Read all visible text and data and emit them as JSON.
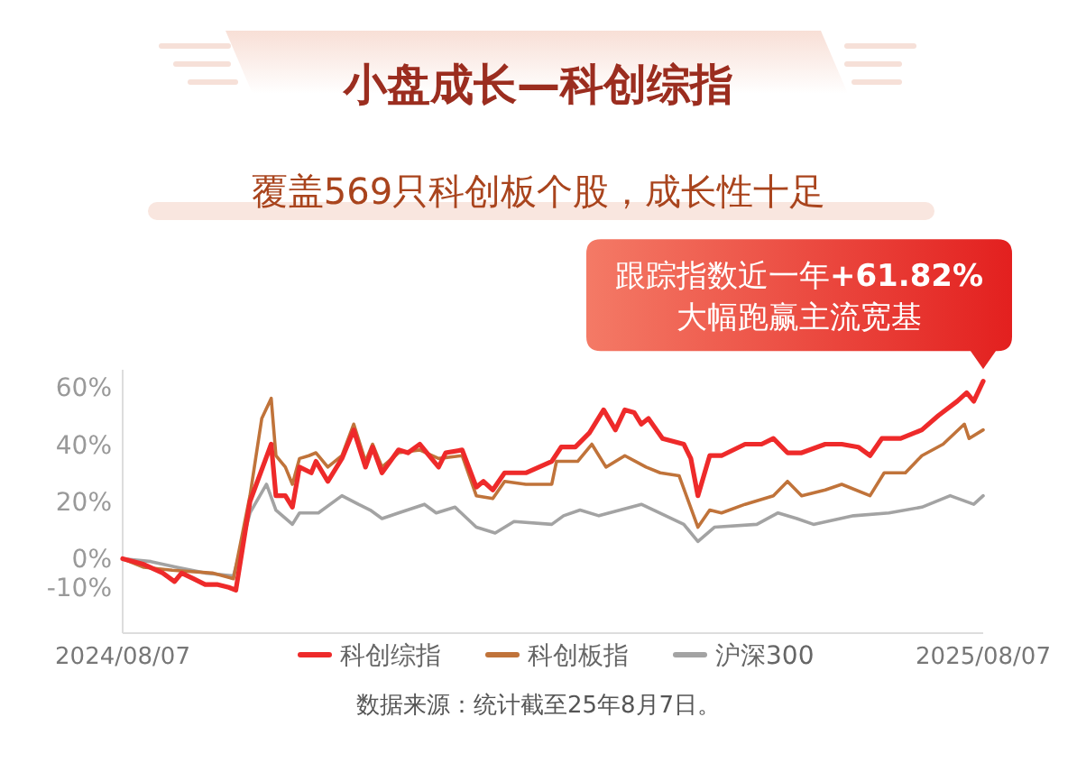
{
  "chart_data": {
    "type": "line",
    "title": "小盘成长—科创综指",
    "subtitle": "覆盖569只科创板个股，成长性十足",
    "xlim": [
      "2024-08-07",
      "2025-08-07"
    ],
    "xticks": [
      {
        "value": "2024-08-07",
        "label": "2024/08/07"
      },
      {
        "value": "2025-08-07",
        "label": "2025/08/07"
      }
    ],
    "ylim": [
      -26,
      66
    ],
    "yticks": [
      {
        "value": 60,
        "label": "60%"
      },
      {
        "value": 40,
        "label": "40%"
      },
      {
        "value": 20,
        "label": "20%"
      },
      {
        "value": 0,
        "label": "0%"
      },
      {
        "value": -10,
        "label": "-10%"
      }
    ],
    "legend": "bottom",
    "series": [
      {
        "name": "科创综指",
        "color": "#ee2a2a",
        "x": [
          "2024-08-07",
          "2024-08-16",
          "2024-08-24",
          "2024-08-29",
          "2024-09-01",
          "2024-09-06",
          "2024-09-11",
          "2024-09-16",
          "2024-09-21",
          "2024-09-24",
          "2024-09-30",
          "2024-10-09",
          "2024-10-11",
          "2024-10-15",
          "2024-10-18",
          "2024-10-21",
          "2024-10-26",
          "2024-10-28",
          "2024-11-02",
          "2024-11-08",
          "2024-11-13",
          "2024-11-18",
          "2024-11-21",
          "2024-11-25",
          "2024-12-02",
          "2024-12-06",
          "2024-12-11",
          "2024-12-19",
          "2024-12-22",
          "2024-12-29",
          "2025-01-04",
          "2025-01-07",
          "2025-01-11",
          "2025-01-16",
          "2025-01-25",
          "2025-02-05",
          "2025-02-09",
          "2025-02-15",
          "2025-02-21",
          "2025-02-27",
          "2025-03-04",
          "2025-03-08",
          "2025-03-12",
          "2025-03-15",
          "2025-03-18",
          "2025-03-24",
          "2025-04-02",
          "2025-04-05",
          "2025-04-08",
          "2025-04-13",
          "2025-04-18",
          "2025-04-28",
          "2025-05-05",
          "2025-05-10",
          "2025-05-16",
          "2025-05-22",
          "2025-06-01",
          "2025-06-08",
          "2025-06-15",
          "2025-06-20",
          "2025-06-25",
          "2025-07-03",
          "2025-07-12",
          "2025-07-19",
          "2025-07-27",
          "2025-07-31",
          "2025-08-03",
          "2025-08-07"
        ],
        "values": [
          0,
          -2,
          -5,
          -8,
          -5,
          -7,
          -9,
          -9,
          -10,
          -11,
          20,
          40,
          22,
          22,
          18,
          32,
          30,
          34,
          27,
          35,
          45,
          32,
          39,
          30,
          38,
          37,
          40,
          32,
          37,
          38,
          25,
          27,
          24,
          30,
          30,
          34,
          39,
          39,
          44,
          52,
          45,
          52,
          51,
          47,
          49,
          42,
          40,
          35,
          22,
          36,
          36,
          40,
          40,
          42,
          37,
          37,
          40,
          40,
          39,
          36,
          42,
          42,
          45,
          50,
          55,
          58,
          55,
          62
        ]
      },
      {
        "name": "科创板指",
        "color": "#c0733a",
        "x": [
          "2024-08-07",
          "2024-08-16",
          "2024-08-28",
          "2024-09-14",
          "2024-09-23",
          "2024-09-30",
          "2024-10-05",
          "2024-10-09",
          "2024-10-11",
          "2024-10-15",
          "2024-10-18",
          "2024-10-21",
          "2024-10-25",
          "2024-10-28",
          "2024-11-02",
          "2024-11-08",
          "2024-11-13",
          "2024-11-18",
          "2024-11-21",
          "2024-11-25",
          "2024-12-02",
          "2024-12-11",
          "2024-12-19",
          "2024-12-29",
          "2025-01-04",
          "2025-01-11",
          "2025-01-16",
          "2025-01-25",
          "2025-02-05",
          "2025-02-07",
          "2025-02-16",
          "2025-02-22",
          "2025-02-28",
          "2025-03-08",
          "2025-03-17",
          "2025-03-23",
          "2025-03-31",
          "2025-04-08",
          "2025-04-13",
          "2025-04-18",
          "2025-04-28",
          "2025-05-10",
          "2025-05-16",
          "2025-05-22",
          "2025-06-01",
          "2025-06-08",
          "2025-06-20",
          "2025-06-26",
          "2025-07-05",
          "2025-07-12",
          "2025-07-21",
          "2025-07-30",
          "2025-08-01",
          "2025-08-07"
        ],
        "values": [
          0,
          -3,
          -4,
          -5,
          -7,
          22,
          49,
          56,
          36,
          32,
          26,
          35,
          36,
          37,
          32,
          36,
          47,
          34,
          40,
          32,
          37,
          38,
          35,
          36,
          22,
          21,
          27,
          26,
          26,
          34,
          34,
          40,
          32,
          36,
          32,
          30,
          29,
          11,
          17,
          16,
          19,
          22,
          27,
          22,
          24,
          26,
          22,
          30,
          30,
          36,
          40,
          47,
          42,
          45
        ]
      },
      {
        "name": "沪深300",
        "color": "#a3a3a3",
        "x": [
          "2024-08-07",
          "2024-08-19",
          "2024-08-30",
          "2024-09-11",
          "2024-09-23",
          "2024-09-30",
          "2024-10-07",
          "2024-10-11",
          "2024-10-18",
          "2024-10-21",
          "2024-10-29",
          "2024-11-08",
          "2024-11-15",
          "2024-11-20",
          "2024-11-25",
          "2024-12-02",
          "2024-12-13",
          "2024-12-18",
          "2024-12-26",
          "2025-01-04",
          "2025-01-12",
          "2025-01-20",
          "2025-02-05",
          "2025-02-10",
          "2025-02-17",
          "2025-02-25",
          "2025-03-15",
          "2025-04-02",
          "2025-04-08",
          "2025-04-15",
          "2025-05-03",
          "2025-05-12",
          "2025-05-20",
          "2025-05-27",
          "2025-06-13",
          "2025-06-28",
          "2025-07-12",
          "2025-07-24",
          "2025-08-03",
          "2025-08-07"
        ],
        "values": [
          0,
          -1,
          -3,
          -5,
          -6,
          16,
          26,
          17,
          12,
          16,
          16,
          22,
          19,
          17,
          14,
          16,
          19,
          16,
          18,
          11,
          9,
          13,
          12,
          15,
          17,
          15,
          19,
          12,
          6,
          11,
          12,
          16,
          14,
          12,
          15,
          16,
          18,
          22,
          19,
          22
        ]
      }
    ],
    "annotations": [
      {
        "text": "跟踪指数近一年**+61.82%**\n大幅跑赢主流宽基",
        "x": "2025-08-07",
        "y": 61.82
      },
      "数据来源：统计截至25年8月7日。"
    ]
  }
}
